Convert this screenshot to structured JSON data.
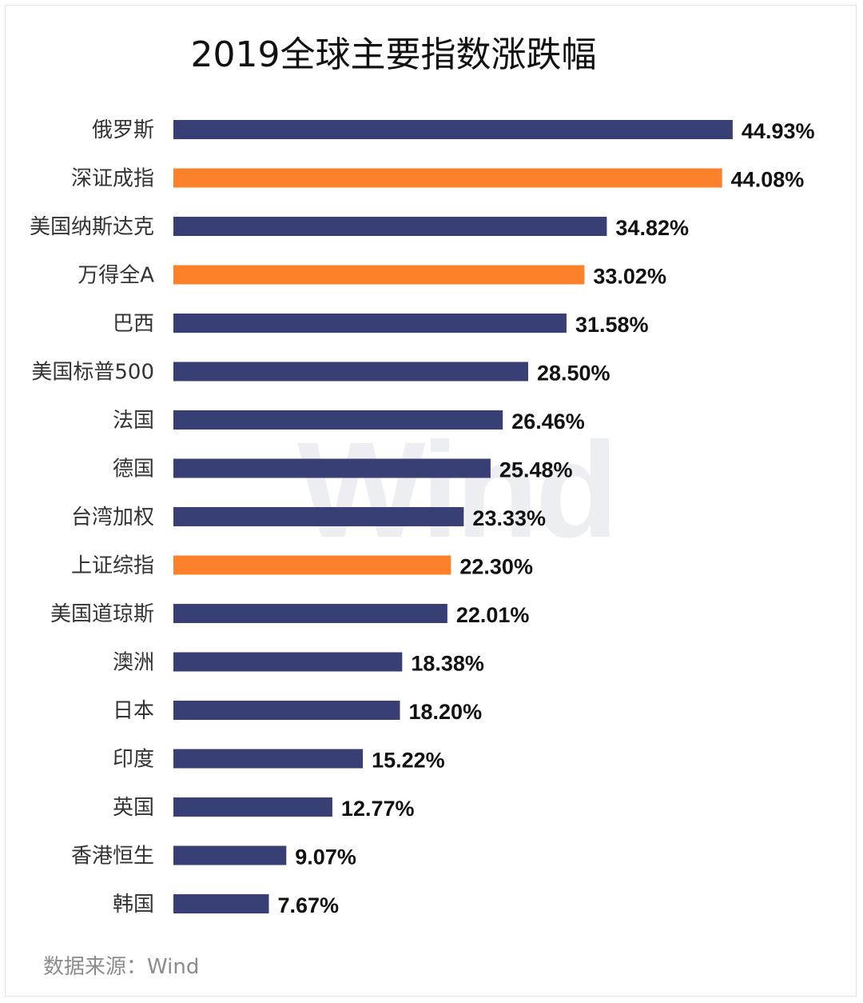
{
  "colors": {
    "default_bar": "#383f74",
    "highlight_bar": "#fc812a"
  },
  "source_note": "数据来源：Wind",
  "watermark": "Wind",
  "chart_data": {
    "type": "bar",
    "orientation": "horizontal",
    "title": "2019全球主要指数涨跌幅",
    "categories": [
      "俄罗斯",
      "深证成指",
      "美国纳斯达克",
      "万得全A",
      "巴西",
      "美国标普500",
      "法国",
      "德国",
      "台湾加权",
      "上证综指",
      "美国道琼斯",
      "澳洲",
      "日本",
      "印度",
      "英国",
      "香港恒生",
      "韩国"
    ],
    "values": [
      44.93,
      44.08,
      34.82,
      33.02,
      31.58,
      28.5,
      26.46,
      25.48,
      23.33,
      22.3,
      22.01,
      18.38,
      18.2,
      15.22,
      12.77,
      9.07,
      7.67
    ],
    "value_labels": [
      "44.93%",
      "44.08%",
      "34.82%",
      "33.02%",
      "31.58%",
      "28.50%",
      "26.46%",
      "25.48%",
      "23.33%",
      "22.30%",
      "22.01%",
      "18.38%",
      "18.20%",
      "15.22%",
      "12.77%",
      "9.07%",
      "7.67%"
    ],
    "highlighted": [
      "深证成指",
      "万得全A",
      "上证综指"
    ],
    "xlim": [
      0,
      45
    ],
    "grid": false,
    "legend": "none"
  }
}
